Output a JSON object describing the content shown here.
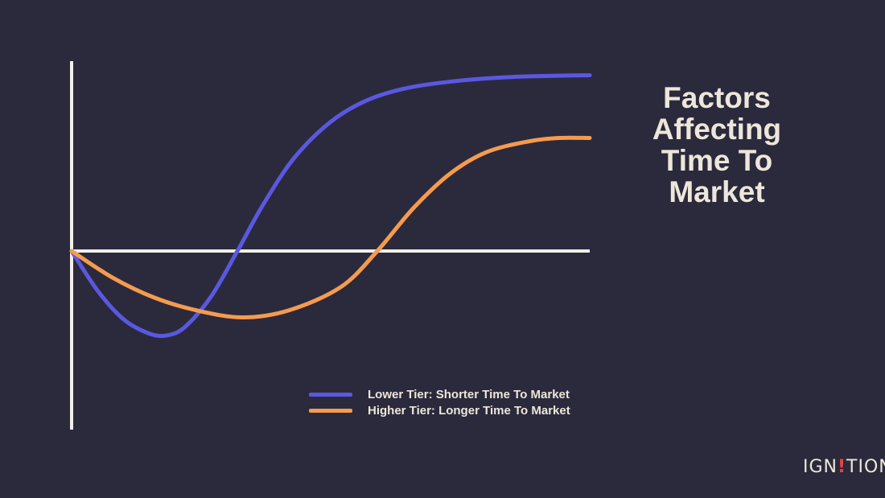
{
  "title_lines": [
    "Factors",
    "Affecting",
    "Time To",
    "Market"
  ],
  "logo": {
    "before": "IGN",
    "mark": "!",
    "after": "TION"
  },
  "colors": {
    "background": "#2b2a3c",
    "axis": "#f2efe8",
    "lower": "#5a58e0",
    "higher": "#f59b4f",
    "text": "#ede6da"
  },
  "chart_data": {
    "type": "line",
    "title": "Factors Affecting Time To Market",
    "xlabel": "",
    "ylabel": "",
    "xlim": [
      0,
      100
    ],
    "ylim": [
      -50,
      100
    ],
    "grid": false,
    "legend_position": "bottom-center",
    "series": [
      {
        "name": "Lower Tier: Shorter Time To Market",
        "color": "#5a58e0",
        "x": [
          0,
          5,
          10,
          15,
          18.5,
          22,
          27,
          32,
          37,
          43,
          50,
          57,
          65,
          75,
          85,
          100
        ],
        "y": [
          0,
          -22,
          -38,
          -46,
          -47,
          -42,
          -25,
          0,
          26,
          52,
          72,
          84,
          91,
          95,
          97,
          98
        ]
      },
      {
        "name": "Higher Tier: Longer Time To Market",
        "color": "#f59b4f",
        "x": [
          0,
          8,
          16,
          24,
          33,
          42,
          52,
          59,
          66,
          73,
          80,
          88,
          94,
          100
        ],
        "y": [
          0,
          -15,
          -26,
          -33,
          -37,
          -33,
          -20,
          0,
          24,
          43,
          55,
          61,
          63,
          63
        ]
      }
    ]
  }
}
